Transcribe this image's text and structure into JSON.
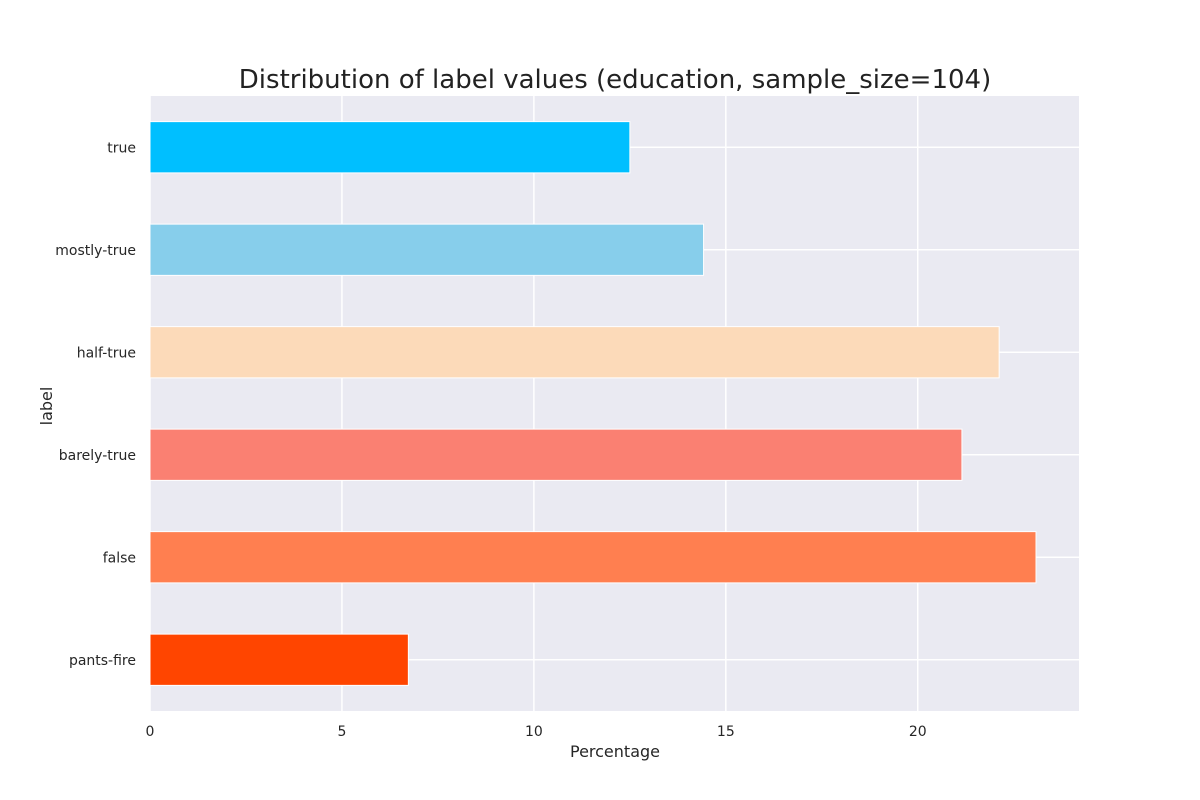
{
  "chart_data": {
    "type": "bar",
    "orientation": "horizontal",
    "title": "Distribution of label values (education, sample_size=104)",
    "xlabel": "Percentage",
    "ylabel": "label",
    "categories": [
      "pants-fire",
      "false",
      "barely-true",
      "half-true",
      "mostly-true",
      "true"
    ],
    "values": [
      6.73,
      23.08,
      21.15,
      22.12,
      14.42,
      12.5
    ],
    "colors": [
      "#ff4500",
      "#ff7f50",
      "#fa8072",
      "#fcdab9",
      "#87ceeb",
      "#00bfff"
    ],
    "xlim": [
      0,
      24.2
    ],
    "xticks": [
      "0",
      "5",
      "10",
      "15",
      "20"
    ],
    "grid": true,
    "legend": "none",
    "background": "#eaeaf2"
  }
}
